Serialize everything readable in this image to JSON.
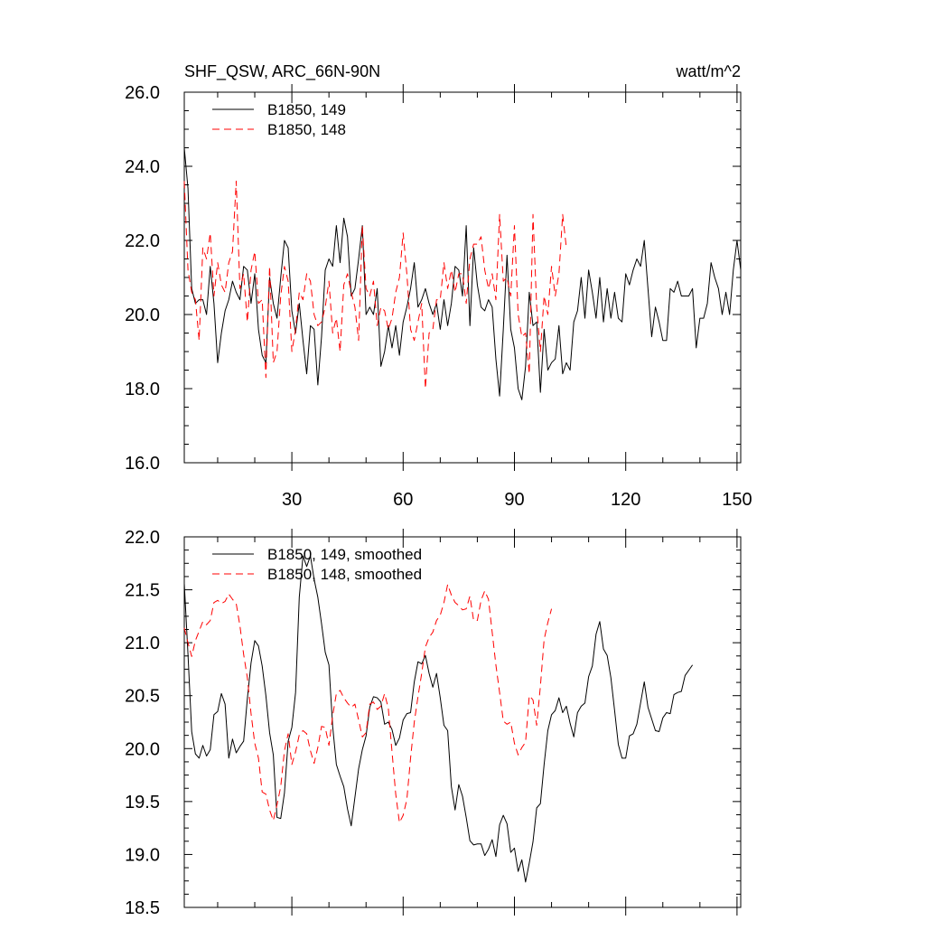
{
  "chart_data": [
    {
      "type": "line",
      "title": "SHF_QSW, ARC_66N-90N",
      "units": "watt/m^2",
      "ylim": [
        16,
        26
      ],
      "xlim": [
        1,
        151
      ],
      "yticks": [
        "16.0",
        "18.0",
        "20.0",
        "22.0",
        "24.0",
        "26.0"
      ],
      "xticks": [
        "30",
        "60",
        "90",
        "120",
        "150"
      ],
      "legend_position": "top-left",
      "series": [
        {
          "name": "B1850, 149",
          "color": "#000000",
          "style": "solid",
          "values": [
            24.5,
            23.4,
            20.7,
            20.3,
            20.4,
            20.4,
            20.0,
            21.3,
            20.3,
            18.7,
            19.5,
            20.1,
            20.4,
            20.9,
            20.6,
            20.4,
            21.3,
            21.2,
            20.3,
            21.1,
            19.6,
            18.9,
            18.7,
            21.0,
            20.3,
            19.9,
            21.0,
            22.0,
            21.8,
            20.1,
            19.5,
            20.3,
            19.3,
            18.4,
            19.7,
            19.6,
            18.1,
            19.4,
            21.2,
            21.5,
            21.3,
            22.4,
            21.4,
            22.6,
            22.1,
            20.5,
            20.7,
            21.5,
            22.4,
            20.0,
            20.2,
            20.0,
            20.7,
            18.6,
            19.0,
            19.7,
            19.1,
            19.7,
            18.9,
            19.8,
            20.2,
            20.7,
            21.4,
            20.2,
            20.4,
            20.7,
            20.3,
            20.0,
            20.3,
            19.6,
            20.4,
            19.7,
            20.3,
            21.3,
            21.2,
            20.5,
            22.4,
            19.7,
            21.8,
            20.8,
            20.2,
            20.1,
            20.4,
            20.2,
            18.8,
            17.8,
            19.6,
            21.6,
            19.6,
            19.1,
            18.0,
            17.7,
            18.6,
            20.6,
            19.7,
            19.8,
            17.9,
            19.6,
            18.5,
            18.7,
            18.8,
            19.7,
            18.4,
            18.7,
            18.5,
            19.8,
            20.1,
            21.0,
            19.9,
            21.2,
            20.6,
            19.9,
            21.0,
            19.8,
            20.7,
            19.9,
            20.6,
            19.9,
            19.8,
            21.1,
            20.8,
            21.2,
            21.5,
            21.3,
            22.0,
            20.7,
            19.4,
            20.2,
            19.8,
            19.3,
            19.3,
            20.7,
            20.6,
            20.9,
            20.5,
            20.5,
            20.5,
            20.7,
            19.1,
            19.9,
            19.9,
            20.3,
            21.4,
            21.0,
            20.7,
            20.0,
            20.6,
            20.0,
            21.2,
            22.0,
            21.2
          ]
        },
        {
          "name": "B1850, 148",
          "color": "#ff0000",
          "style": "dashed",
          "values": [
            23.6,
            21.2,
            20.6,
            20.4,
            19.3,
            21.8,
            21.5,
            22.2,
            20.5,
            21.4,
            20.8,
            20.6,
            21.4,
            21.7,
            23.6,
            20.7,
            21.1,
            19.8,
            21.2,
            21.7,
            20.3,
            20.4,
            18.3,
            21.3,
            18.7,
            19.0,
            20.5,
            21.3,
            20.9,
            19.0,
            19.6,
            20.6,
            20.4,
            21.1,
            20.9,
            20.0,
            19.7,
            19.8,
            20.2,
            20.9,
            19.5,
            19.9,
            19.0,
            20.8,
            21.1,
            20.6,
            20.2,
            19.3,
            22.4,
            20.7,
            20.5,
            20.9,
            19.7,
            20.2,
            20.1,
            19.6,
            19.9,
            20.6,
            21.0,
            22.2,
            21.1,
            19.6,
            19.3,
            19.8,
            20.3,
            18.0,
            19.5,
            19.6,
            20.4,
            20.4,
            21.4,
            20.7,
            21.2,
            20.6,
            21.1,
            21.1,
            20.3,
            21.5,
            21.9,
            21.9,
            22.1,
            21.2,
            20.7,
            21.1,
            20.4,
            22.7,
            20.9,
            21.0,
            20.5,
            22.4,
            20.0,
            19.4,
            19.5,
            18.4,
            22.7,
            20.2,
            19.0,
            20.5,
            20.0,
            21.3,
            20.5,
            21.1,
            22.7,
            21.8
          ]
        }
      ]
    },
    {
      "type": "line",
      "title": "",
      "ylim": [
        18.5,
        22.0
      ],
      "xlim": [
        1,
        151
      ],
      "yticks": [
        "18.5",
        "19.0",
        "19.5",
        "20.0",
        "20.5",
        "21.0",
        "21.5",
        "22.0"
      ],
      "legend_position": "top-left",
      "series": [
        {
          "name": "B1850, 149, smoothed",
          "color": "#000000",
          "style": "solid",
          "values": [
            21.56,
            20.89,
            20.16,
            19.95,
            19.91,
            20.03,
            19.93,
            19.99,
            20.32,
            20.35,
            20.52,
            20.42,
            19.91,
            20.09,
            19.96,
            20.02,
            20.07,
            20.47,
            20.81,
            21.02,
            20.97,
            20.78,
            20.5,
            20.15,
            19.94,
            19.35,
            19.34,
            19.58,
            20.07,
            20.2,
            20.53,
            21.43,
            21.82,
            21.72,
            21.82,
            21.6,
            21.43,
            21.18,
            20.91,
            20.79,
            20.21,
            19.85,
            19.74,
            19.64,
            19.43,
            19.27,
            19.54,
            19.81,
            19.99,
            20.12,
            20.39,
            20.49,
            20.48,
            20.44,
            20.23,
            20.25,
            20.18,
            20.03,
            20.1,
            20.27,
            20.33,
            20.34,
            20.63,
            20.82,
            20.8,
            20.88,
            20.71,
            20.58,
            20.71,
            20.48,
            20.22,
            20.17,
            19.64,
            19.42,
            19.66,
            19.55,
            19.35,
            19.13,
            19.09,
            19.1,
            19.1,
            18.99,
            19.05,
            19.14,
            18.98,
            19.28,
            19.37,
            19.29,
            19.02,
            19.06,
            18.84,
            18.95,
            18.74,
            18.92,
            19.12,
            19.44,
            19.48,
            19.85,
            20.17,
            20.32,
            20.36,
            20.48,
            20.34,
            20.4,
            20.24,
            20.11,
            20.34,
            20.4,
            20.43,
            20.68,
            20.78,
            21.08,
            21.2,
            20.94,
            20.88,
            20.67,
            20.36,
            20.04,
            19.91,
            19.91,
            20.12,
            20.14,
            20.23,
            20.43,
            20.63,
            20.39,
            20.28,
            20.17,
            20.16,
            20.29,
            20.34,
            20.33,
            20.51,
            20.53,
            20.54,
            20.69,
            20.74,
            20.79
          ]
        },
        {
          "name": "B1850, 148, smoothed",
          "color": "#ff0000",
          "style": "dashed",
          "values": [
            21.14,
            21.0,
            20.87,
            21.02,
            21.11,
            21.2,
            21.17,
            21.21,
            21.38,
            21.4,
            21.37,
            21.39,
            21.46,
            21.41,
            21.37,
            21.16,
            20.89,
            20.67,
            20.33,
            20.05,
            19.91,
            19.59,
            19.57,
            19.42,
            19.32,
            19.47,
            19.64,
            19.98,
            20.14,
            19.85,
            19.97,
            20.13,
            20.17,
            20.14,
            19.98,
            19.86,
            20.01,
            20.21,
            20.2,
            20.03,
            20.31,
            20.52,
            20.55,
            20.48,
            20.43,
            20.39,
            20.42,
            20.27,
            20.11,
            20.15,
            20.42,
            20.44,
            20.37,
            20.4,
            20.52,
            20.38,
            19.97,
            19.57,
            19.3,
            19.37,
            19.52,
            19.91,
            20.25,
            20.49,
            20.71,
            20.96,
            21.05,
            21.1,
            21.21,
            21.26,
            21.38,
            21.55,
            21.45,
            21.38,
            21.35,
            21.31,
            21.32,
            21.44,
            21.21,
            21.21,
            21.4,
            21.49,
            21.41,
            21.1,
            20.79,
            20.53,
            20.26,
            20.23,
            20.25,
            20.05,
            19.94,
            20.01,
            20.06,
            20.5,
            20.46,
            20.22,
            20.59,
            21.03,
            21.19,
            21.32
          ]
        }
      ]
    }
  ]
}
